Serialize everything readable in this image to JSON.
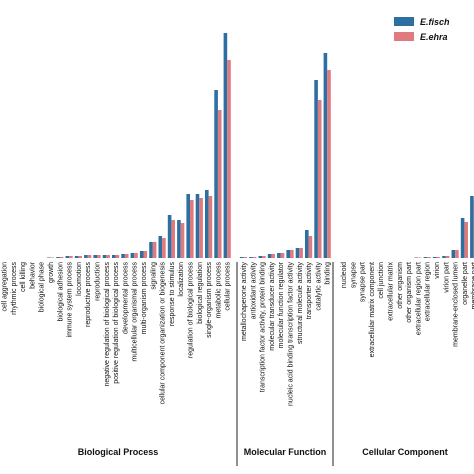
{
  "chart_data": {
    "type": "bar",
    "groups": [
      {
        "name": "Biological Process",
        "categories": [
          "cell aggregation",
          "rhythmic process",
          "cell killing",
          "behavior",
          "biological phase",
          "growth",
          "biological adhesion",
          "immune system process",
          "locomotion",
          "reproductive process",
          "reproduction",
          "negative regulation of biological process",
          "positive regulation of biological process",
          "developmental process",
          "multicellular organismal process",
          "multi-organism process",
          "signaling",
          "cellular component organization or biogenesis",
          "response to stimulus",
          "localization",
          "regulation of biological process",
          "biological regulation",
          "single-organism process",
          "metabolic process",
          "cellular process"
        ]
      },
      {
        "name": "Molecular Function",
        "categories": [
          "metallochaperone activity",
          "antioxidant activity",
          "transcription factor activity, protein binding",
          "molecular transducer activity",
          "molecular function regulator",
          "nucleic acid binding transcription factor activity",
          "structural molecule activity",
          "transporter activity",
          "catalytic activity",
          "binding"
        ]
      },
      {
        "name": "Cellular Component",
        "categories": [
          "nucleoid",
          "synapse",
          "synapse part",
          "extracellular matrix component",
          "cell junction",
          "extracellular matrix",
          "other organism",
          "other organism part",
          "extracellular region part",
          "extracellular region",
          "virion",
          "virion part",
          "membrane-enclosed lumen",
          "organelle part",
          "membrane part"
        ]
      }
    ],
    "series": [
      {
        "name": "E.fisch",
        "color": "#2e6fa2",
        "values": [
          [
            0,
            0,
            0,
            0,
            0,
            0.5,
            1,
            2,
            2,
            3,
            3,
            3,
            3,
            4,
            5,
            7,
            16,
            22,
            43,
            38,
            64,
            64,
            68,
            168,
            225
          ],
          [
            1,
            1,
            2,
            4,
            5,
            8,
            10,
            28,
            178,
            205
          ],
          [
            0,
            0,
            0,
            0,
            0,
            0,
            0,
            0,
            0.5,
            1,
            1,
            2,
            8,
            40,
            62
          ]
        ]
      },
      {
        "name": "E.ehra",
        "color": "#df7a7e",
        "values": [
          [
            0,
            0,
            0,
            0,
            0,
            0.5,
            1,
            2,
            2,
            3,
            3,
            3,
            3,
            4,
            5,
            7,
            16,
            20,
            38,
            35,
            58,
            60,
            62,
            148,
            198
          ],
          [
            1,
            1,
            2,
            4,
            5,
            8,
            10,
            22,
            158,
            188
          ],
          [
            0,
            0,
            0,
            0,
            0,
            0,
            0,
            0,
            0.5,
            1,
            1,
            2,
            8,
            36,
            58
          ]
        ]
      }
    ],
    "ylim": [
      0,
      225
    ]
  }
}
